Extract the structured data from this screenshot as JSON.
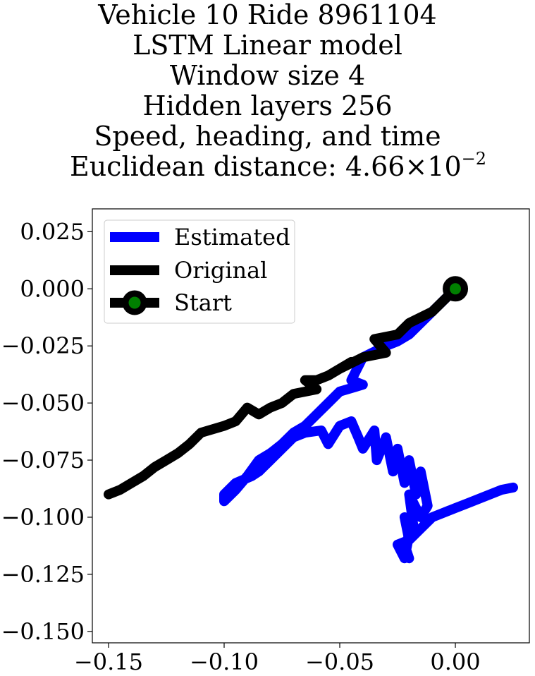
{
  "chart_data": {
    "type": "line",
    "title_lines": [
      "Vehicle 10 Ride 8961104",
      "LSTM Linear model",
      "Window size 4",
      "Hidden layers 256",
      "Speed, heading, and time"
    ],
    "distance_label": "Euclidean distance: ",
    "distance_mantissa": "4.66",
    "distance_times": "×",
    "distance_base": "10",
    "distance_exponent": "−2",
    "xlabel": "",
    "ylabel": "",
    "xlim": [
      -0.157,
      0.032
    ],
    "ylim": [
      -0.155,
      0.035
    ],
    "x_ticks": [
      {
        "value": -0.15,
        "label": "−0.15"
      },
      {
        "value": -0.1,
        "label": "−0.10"
      },
      {
        "value": -0.05,
        "label": "−0.05"
      },
      {
        "value": 0.0,
        "label": "0.00"
      }
    ],
    "y_ticks": [
      {
        "value": 0.025,
        "label": "0.025"
      },
      {
        "value": 0.0,
        "label": "0.000"
      },
      {
        "value": -0.025,
        "label": "−0.025"
      },
      {
        "value": -0.05,
        "label": "−0.050"
      },
      {
        "value": -0.075,
        "label": "−0.075"
      },
      {
        "value": -0.1,
        "label": "−0.100"
      },
      {
        "value": -0.125,
        "label": "−0.125"
      },
      {
        "value": -0.15,
        "label": "−0.150"
      }
    ],
    "grid": false,
    "legend_position": "top-left",
    "series": [
      {
        "name": "Estimated",
        "color": "#0000ff",
        "x": [
          0.0,
          -0.01,
          -0.02,
          -0.025,
          -0.03,
          -0.04,
          -0.045,
          -0.04,
          -0.05,
          -0.055,
          -0.06,
          -0.065,
          -0.07,
          -0.075,
          -0.08,
          -0.085,
          -0.09,
          -0.095,
          -0.1,
          -0.1,
          -0.095,
          -0.088,
          -0.085,
          -0.08,
          -0.075,
          -0.07,
          -0.065,
          -0.058,
          -0.055,
          -0.05,
          -0.045,
          -0.042,
          -0.04,
          -0.035,
          -0.034,
          -0.03,
          -0.027,
          -0.025,
          -0.022,
          -0.02,
          -0.017,
          -0.015,
          -0.012,
          -0.015,
          -0.02,
          -0.018,
          -0.022,
          -0.02,
          -0.025,
          -0.022,
          -0.02,
          -0.023,
          -0.02,
          -0.022,
          -0.015,
          -0.01,
          -0.005,
          0.0,
          0.005,
          0.01,
          0.015,
          0.02,
          0.025
        ],
        "y": [
          0.0,
          -0.01,
          -0.02,
          -0.023,
          -0.025,
          -0.03,
          -0.04,
          -0.042,
          -0.045,
          -0.05,
          -0.055,
          -0.06,
          -0.063,
          -0.068,
          -0.072,
          -0.075,
          -0.082,
          -0.088,
          -0.093,
          -0.09,
          -0.085,
          -0.082,
          -0.08,
          -0.075,
          -0.07,
          -0.065,
          -0.063,
          -0.062,
          -0.068,
          -0.06,
          -0.058,
          -0.065,
          -0.07,
          -0.062,
          -0.075,
          -0.065,
          -0.08,
          -0.07,
          -0.085,
          -0.075,
          -0.09,
          -0.08,
          -0.095,
          -0.1,
          -0.09,
          -0.105,
          -0.1,
          -0.11,
          -0.112,
          -0.118,
          -0.108,
          -0.115,
          -0.118,
          -0.112,
          -0.105,
          -0.1,
          -0.098,
          -0.096,
          -0.094,
          -0.092,
          -0.09,
          -0.088,
          -0.087
        ]
      },
      {
        "name": "Original",
        "color": "#000000",
        "x": [
          0.0,
          -0.01,
          -0.02,
          -0.025,
          -0.035,
          -0.03,
          -0.04,
          -0.05,
          -0.045,
          -0.055,
          -0.06,
          -0.065,
          -0.06,
          -0.07,
          -0.075,
          -0.08,
          -0.085,
          -0.09,
          -0.095,
          -0.1,
          -0.11,
          -0.115,
          -0.12,
          -0.125,
          -0.13,
          -0.135,
          -0.14,
          -0.145,
          -0.15
        ],
        "y": [
          0.0,
          -0.01,
          -0.015,
          -0.02,
          -0.022,
          -0.028,
          -0.03,
          -0.035,
          -0.032,
          -0.038,
          -0.04,
          -0.04,
          -0.044,
          -0.046,
          -0.05,
          -0.052,
          -0.055,
          -0.052,
          -0.058,
          -0.06,
          -0.063,
          -0.068,
          -0.072,
          -0.075,
          -0.078,
          -0.082,
          -0.085,
          -0.088,
          -0.09
        ]
      }
    ],
    "start": {
      "name": "Start",
      "x": 0.0,
      "y": 0.0,
      "marker_color": "#008000",
      "edge_color": "#000000"
    }
  }
}
